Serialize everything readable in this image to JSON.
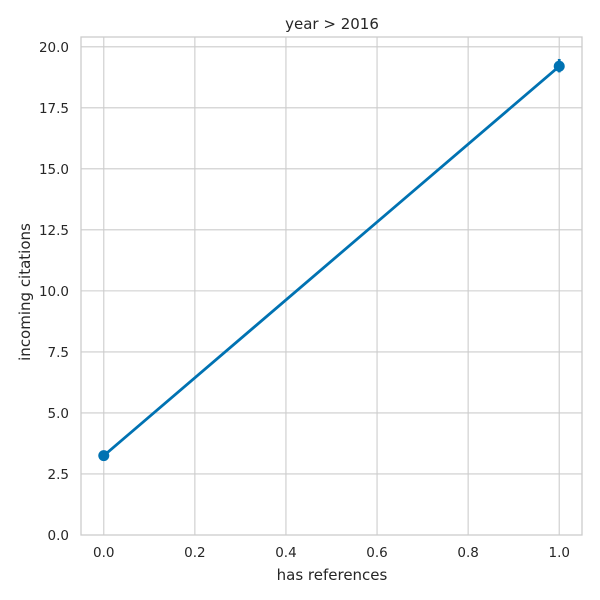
{
  "chart_data": {
    "type": "line",
    "title": "year > 2016",
    "xlabel": "has references",
    "ylabel": "incoming citations",
    "xlim": [
      -0.05,
      1.05
    ],
    "ylim": [
      0,
      20.4
    ],
    "xticks": [
      0.0,
      0.2,
      0.4,
      0.6,
      0.8,
      1.0
    ],
    "xtick_labels": [
      "0.0",
      "0.2",
      "0.4",
      "0.6",
      "0.8",
      "1.0"
    ],
    "yticks": [
      0.0,
      2.5,
      5.0,
      7.5,
      10.0,
      12.5,
      15.0,
      17.5,
      20.0
    ],
    "ytick_labels": [
      "0.0",
      "2.5",
      "5.0",
      "7.5",
      "10.0",
      "12.5",
      "15.0",
      "17.5",
      "20.0"
    ],
    "grid": true,
    "series": [
      {
        "color": "#0072b2",
        "points": [
          {
            "x": 0.0,
            "y": 3.25
          },
          {
            "x": 1.0,
            "y": 19.2
          }
        ],
        "line": [
          {
            "x": 0.0,
            "y": 3.25
          },
          {
            "x": 1.0,
            "y": 19.2
          }
        ],
        "error_bars": [
          {
            "x": 1.0,
            "low": 18.95,
            "high": 19.5
          }
        ]
      }
    ]
  }
}
